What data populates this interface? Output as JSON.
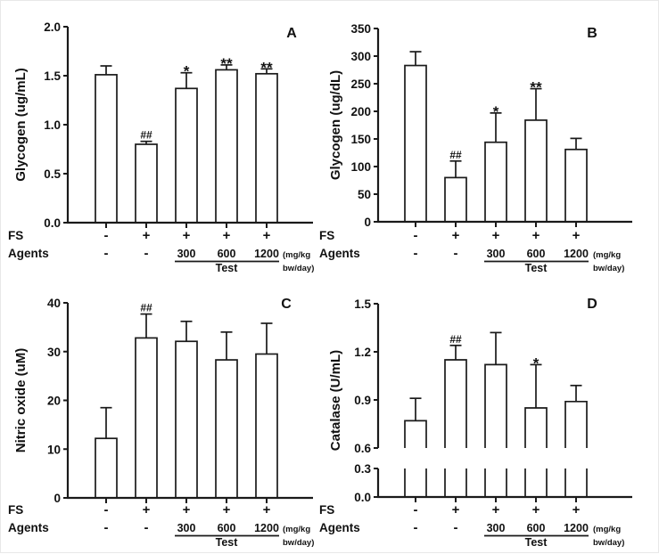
{
  "figure": {
    "colors": {
      "background": "#ffffff",
      "bar_fill": "#ffffff",
      "stroke": "#1a1a1a",
      "text": "#111111"
    }
  },
  "x_rows": {
    "fs_label": "FS",
    "agents_label": "Agents",
    "fs_values": [
      "-",
      "+",
      "+",
      "+",
      "+"
    ],
    "agents_values": [
      "-",
      "-",
      "300",
      "600",
      "1200"
    ],
    "dose_unit_line1": "(mg/kg",
    "dose_unit_line2": "bw/day)",
    "test_group_label": "Test"
  },
  "chart_data": [
    {
      "panel": "A",
      "type": "bar",
      "ylabel": "Glycogen (ug/mL)",
      "ylim": [
        0,
        2.0
      ],
      "ytick_values": [
        0,
        0.5,
        1.0,
        1.5,
        2.0
      ],
      "ytick_labels": [
        "0.0",
        "0.5",
        "1.0",
        "1.5",
        "2.0"
      ],
      "values": [
        1.51,
        0.8,
        1.37,
        1.56,
        1.52
      ],
      "errors": [
        0.09,
        0.03,
        0.16,
        0.05,
        0.05
      ],
      "annotations": [
        "",
        "##",
        "*",
        "**",
        "**"
      ]
    },
    {
      "panel": "B",
      "type": "bar",
      "ylabel": "Glycogen (ug/dL)",
      "ylim": [
        0,
        350
      ],
      "ytick_values": [
        0,
        50,
        100,
        150,
        200,
        250,
        300,
        350
      ],
      "ytick_labels": [
        "0",
        "50",
        "100",
        "150",
        "200",
        "250",
        "300",
        "350"
      ],
      "values": [
        283,
        80,
        144,
        184,
        131
      ],
      "errors": [
        25,
        30,
        53,
        57,
        20
      ],
      "annotations": [
        "",
        "##",
        "*",
        "**",
        ""
      ]
    },
    {
      "panel": "C",
      "type": "bar",
      "ylabel": "Nitric oxide (uM)",
      "ylim": [
        0,
        40
      ],
      "ytick_values": [
        0,
        10,
        20,
        30,
        40
      ],
      "ytick_labels": [
        "0",
        "10",
        "20",
        "30",
        "40"
      ],
      "values": [
        12.2,
        32.8,
        32.1,
        28.3,
        29.5
      ],
      "errors": [
        6.3,
        4.9,
        4.1,
        5.7,
        6.3
      ],
      "annotations": [
        "",
        "##",
        "",
        "",
        ""
      ]
    },
    {
      "panel": "D",
      "type": "bar",
      "ylabel": "Catalase (U/mL)",
      "ylim": [
        0,
        1.5
      ],
      "axis_break": {
        "lower_max": 0.3,
        "upper_min": 0.6
      },
      "ytick_values": [
        0,
        0.3,
        0.6,
        0.9,
        1.2,
        1.5
      ],
      "ytick_labels": [
        "0.0",
        "0.3",
        "0.6",
        "0.9",
        "1.2",
        "1.5"
      ],
      "values": [
        0.77,
        1.15,
        1.12,
        0.85,
        0.89
      ],
      "errors": [
        0.14,
        0.09,
        0.2,
        0.27,
        0.1
      ],
      "annotations": [
        "",
        "##",
        "",
        "*",
        ""
      ]
    }
  ]
}
